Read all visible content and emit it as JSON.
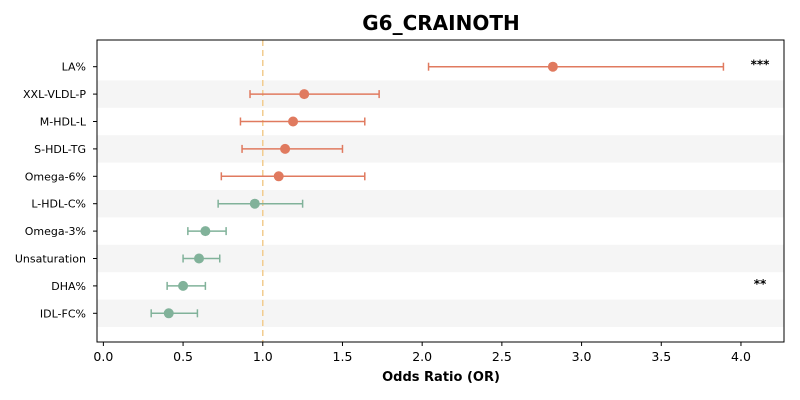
{
  "chart_data": {
    "type": "scatter",
    "title": "G6_CRAINOTH",
    "xlabel": "Odds Ratio (OR)",
    "ylabel": "",
    "xlim": [
      -0.04,
      4.27
    ],
    "xticks": [
      "0.0",
      "0.5",
      "1.0",
      "1.5",
      "2.0",
      "2.5",
      "3.0",
      "3.5",
      "4.0"
    ],
    "reference_line": 1.0,
    "colors": {
      "risk": "#E07A5F",
      "protective": "#81B29A",
      "reference": "#F2CC8F",
      "band": "#F5F5F5"
    },
    "rows": [
      {
        "label": "LA%",
        "or": 2.82,
        "lo": 2.04,
        "hi": 3.89,
        "group": "risk",
        "sig": "***"
      },
      {
        "label": "XXL-VLDL-P",
        "or": 1.26,
        "lo": 0.92,
        "hi": 1.73,
        "group": "risk",
        "sig": ""
      },
      {
        "label": "M-HDL-L",
        "or": 1.19,
        "lo": 0.86,
        "hi": 1.64,
        "group": "risk",
        "sig": ""
      },
      {
        "label": "S-HDL-TG",
        "or": 1.14,
        "lo": 0.87,
        "hi": 1.5,
        "group": "risk",
        "sig": ""
      },
      {
        "label": "Omega-6%",
        "or": 1.1,
        "lo": 0.74,
        "hi": 1.64,
        "group": "risk",
        "sig": ""
      },
      {
        "label": "L-HDL-C%",
        "or": 0.95,
        "lo": 0.72,
        "hi": 1.25,
        "group": "protective",
        "sig": ""
      },
      {
        "label": "Omega-3%",
        "or": 0.64,
        "lo": 0.53,
        "hi": 0.77,
        "group": "protective",
        "sig": ""
      },
      {
        "label": "Unsaturation",
        "or": 0.6,
        "lo": 0.5,
        "hi": 0.73,
        "group": "protective",
        "sig": ""
      },
      {
        "label": "DHA%",
        "or": 0.5,
        "lo": 0.4,
        "hi": 0.64,
        "group": "protective",
        "sig": "**"
      },
      {
        "label": "IDL-FC%",
        "or": 0.41,
        "lo": 0.3,
        "hi": 0.59,
        "group": "protective",
        "sig": ""
      }
    ]
  }
}
